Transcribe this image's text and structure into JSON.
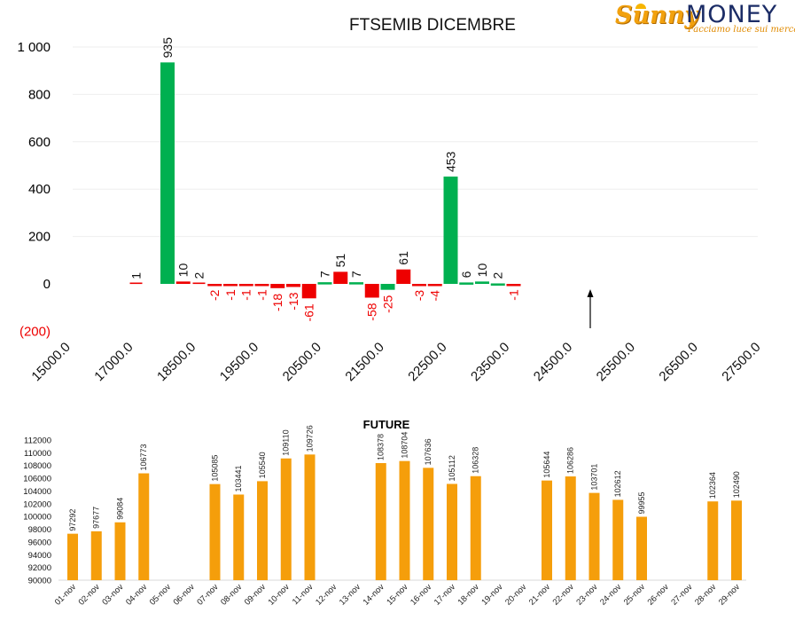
{
  "logo": {
    "brand_left": "Sunny",
    "brand_right": "MONEY",
    "tagline": "Facciamo luce sui mercati"
  },
  "colors": {
    "positive": "#00b050",
    "negative": "#ee0000",
    "negative_label": "#ee0000",
    "future": "#f59e0b",
    "axis_text": "#000000"
  },
  "chart_data": [
    {
      "type": "bar",
      "title": "FTSEMIB DICEMBRE",
      "y_ticks": [
        "1 000",
        "800",
        "600",
        "400",
        "200",
        "0",
        "(200)"
      ],
      "y_tick_values": [
        1000,
        800,
        600,
        400,
        200,
        0,
        -200
      ],
      "ylim": [
        -200,
        1000
      ],
      "grid": true,
      "x_tick_labels": [
        "15000.0",
        "17000.0",
        "18500.0",
        "19500.0",
        "20500.0",
        "21500.0",
        "22500.0",
        "23500.0",
        "24500.0",
        "25500.0",
        "26500.0",
        "27500.0"
      ],
      "bars": [
        {
          "slot": 2,
          "value": 1,
          "label": "1",
          "color": "negative",
          "thin": true
        },
        {
          "slot": 4,
          "value": 935,
          "label": "935",
          "color": "positive"
        },
        {
          "slot": 5,
          "value": 10,
          "label": "10",
          "color": "negative"
        },
        {
          "slot": 6,
          "value": 2,
          "label": "2",
          "color": "negative",
          "thin": true
        },
        {
          "slot": 7,
          "value": -2,
          "label": "-2",
          "color": "negative"
        },
        {
          "slot": 8,
          "value": -1,
          "label": "-1",
          "color": "negative"
        },
        {
          "slot": 9,
          "value": -1,
          "label": "-1",
          "color": "negative"
        },
        {
          "slot": 10,
          "value": -1,
          "label": "-1",
          "color": "negative"
        },
        {
          "slot": 11,
          "value": -18,
          "label": "-18",
          "color": "negative"
        },
        {
          "slot": 12,
          "value": -13,
          "label": "-13",
          "color": "negative"
        },
        {
          "slot": 13,
          "value": -61,
          "label": "-61",
          "color": "negative"
        },
        {
          "slot": 14,
          "value": 7,
          "label": "7",
          "color": "positive"
        },
        {
          "slot": 15,
          "value": 51,
          "label": "51",
          "color": "negative"
        },
        {
          "slot": 16,
          "value": 7,
          "label": "7",
          "color": "positive"
        },
        {
          "slot": 17,
          "value": -58,
          "label": "-58",
          "color": "negative"
        },
        {
          "slot": 18,
          "value": -25,
          "label": "-25",
          "color": "positive"
        },
        {
          "slot": 19,
          "value": 61,
          "label": "61",
          "color": "negative"
        },
        {
          "slot": 20,
          "value": -3,
          "label": "-3",
          "color": "negative"
        },
        {
          "slot": 21,
          "value": -4,
          "label": "-4",
          "color": "negative"
        },
        {
          "slot": 22,
          "value": 453,
          "label": "453",
          "color": "positive"
        },
        {
          "slot": 23,
          "value": 6,
          "label": "6",
          "color": "positive"
        },
        {
          "slot": 24,
          "value": 10,
          "label": "10",
          "color": "positive"
        },
        {
          "slot": 25,
          "value": 2,
          "label": "2",
          "color": "positive"
        },
        {
          "slot": 26,
          "value": -1,
          "label": "-1",
          "color": "negative"
        }
      ]
    },
    {
      "type": "bar",
      "title": "FUTURE",
      "ylim": [
        90000,
        112000
      ],
      "y_ticks": [
        "112000",
        "110000",
        "108000",
        "106000",
        "104000",
        "102000",
        "100000",
        "98000",
        "96000",
        "94000",
        "92000",
        "90000"
      ],
      "y_tick_values": [
        112000,
        110000,
        108000,
        106000,
        104000,
        102000,
        100000,
        98000,
        96000,
        94000,
        92000,
        90000
      ],
      "categories": [
        "01-nov",
        "02-nov",
        "03-nov",
        "04-nov",
        "05-nov",
        "06-nov",
        "07-nov",
        "08-nov",
        "09-nov",
        "10-nov",
        "11-nov",
        "12-nov",
        "13-nov",
        "14-nov",
        "15-nov",
        "16-nov",
        "17-nov",
        "18-nov",
        "19-nov",
        "20-nov",
        "21-nov",
        "22-nov",
        "23-nov",
        "24-nov",
        "25-nov",
        "26-nov",
        "27-nov",
        "28-nov",
        "29-nov"
      ],
      "values": [
        97292,
        97677,
        99084,
        106773,
        null,
        null,
        105085,
        103441,
        105540,
        109110,
        109726,
        null,
        null,
        108378,
        108704,
        107636,
        105112,
        106328,
        null,
        null,
        105644,
        106286,
        103701,
        102612,
        99955,
        null,
        null,
        102364,
        102490
      ]
    }
  ]
}
